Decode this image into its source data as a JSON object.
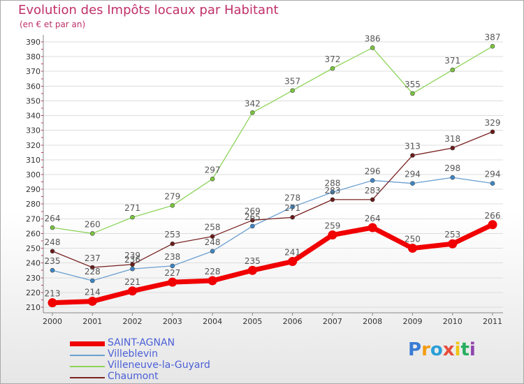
{
  "header": {
    "title": "Evolution des Impôts locaux par Habitant",
    "subtitle": "(en € et par an)"
  },
  "logo": {
    "text": "Proxiti",
    "colors": [
      "#3a7bd5",
      "#f39c12",
      "#2a9fd8",
      "#e74c3c",
      "#f1c40f",
      "#27ae60",
      "#8e44ad"
    ]
  },
  "chart_data": {
    "type": "line",
    "title": "Evolution des Impôts locaux par Habitant",
    "subtitle": "(en € et par an)",
    "xlabel": "",
    "ylabel": "",
    "x": [
      "2000",
      "2001",
      "2002",
      "2003",
      "2004",
      "2005",
      "2006",
      "2007",
      "2008",
      "2009",
      "2010",
      "2011"
    ],
    "ylim": [
      210,
      390
    ],
    "yticks": [
      210,
      220,
      230,
      240,
      250,
      260,
      270,
      280,
      290,
      300,
      310,
      320,
      330,
      340,
      350,
      360,
      370,
      380,
      390
    ],
    "grid": "horizontal",
    "legend_position": "bottom-left",
    "series": [
      {
        "name": "Villeneuve-la-Guyard",
        "color": "#8ed45a",
        "marker": "#7cc43f",
        "values": [
          264,
          260,
          271,
          279,
          297,
          342,
          357,
          372,
          386,
          355,
          371,
          387
        ]
      },
      {
        "name": "Villeblevin",
        "color": "#6a9fd0",
        "marker": "#3d86c6",
        "values": [
          235,
          228,
          236,
          238,
          248,
          265,
          278,
          288,
          296,
          294,
          298,
          294
        ]
      },
      {
        "name": "Chaumont",
        "color": "#7a2323",
        "marker": "#6b1a1a",
        "values": [
          248,
          237,
          239,
          253,
          258,
          269,
          271,
          283,
          283,
          313,
          318,
          329
        ]
      },
      {
        "name": "SAINT-AGNAN",
        "color": "#f00000",
        "marker": "#f00000",
        "values": [
          213,
          214,
          221,
          227,
          228,
          235,
          241,
          259,
          264,
          250,
          253,
          266
        ]
      }
    ],
    "legend": [
      "SAINT-AGNAN",
      "Villeblevin",
      "Villeneuve-la-Guyard",
      "Chaumont"
    ]
  }
}
